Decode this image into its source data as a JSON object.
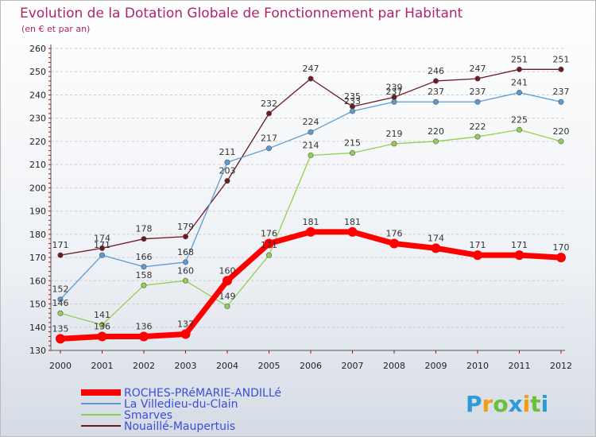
{
  "chart_data": {
    "type": "line",
    "title": "Evolution de la Dotation Globale de Fonctionnement par Habitant",
    "subtitle": "(en € et par an)",
    "xlabel": "",
    "ylabel": "",
    "categories": [
      "2000",
      "2001",
      "2002",
      "2003",
      "2004",
      "2005",
      "2006",
      "2007",
      "2008",
      "2009",
      "2010",
      "2011",
      "2012"
    ],
    "ylim": [
      130,
      260
    ],
    "yticks": [
      130,
      140,
      150,
      160,
      170,
      180,
      190,
      200,
      210,
      220,
      230,
      240,
      250,
      260
    ],
    "grid": "horizontal-dashed",
    "legend_position": "bottom-left",
    "series": [
      {
        "name": "Nouaillé-Maupertuis",
        "color": "#6e1a22",
        "values": [
          171,
          174,
          178,
          179,
          203,
          232,
          247,
          235,
          239,
          246,
          247,
          251,
          251
        ]
      },
      {
        "name": "La Villedieu-du-Clain",
        "color": "#5b9bd5",
        "values": [
          152,
          171,
          166,
          168,
          211,
          217,
          224,
          233,
          237,
          237,
          237,
          241,
          237
        ]
      },
      {
        "name": "Smarves",
        "color": "#92d050",
        "values": [
          146,
          141,
          158,
          160,
          149,
          171,
          214,
          215,
          219,
          220,
          222,
          225,
          220
        ]
      },
      {
        "name": "ROCHES-PRéMARIE-ANDILLé",
        "color": "#ff0000",
        "values": [
          135,
          136,
          136,
          137,
          160,
          176,
          181,
          181,
          176,
          174,
          171,
          171,
          170
        ]
      }
    ],
    "legend_order": [
      "ROCHES-PRéMARIE-ANDILLé",
      "La Villedieu-du-Clain",
      "Smarves",
      "Nouaillé-Maupertuis"
    ]
  },
  "brand": {
    "letters": [
      "P",
      "r",
      "o",
      "x",
      "i",
      "t",
      "i"
    ],
    "colors": [
      "#2e9bd6",
      "#f39c12",
      "#6abf3b",
      "#2e9bd6",
      "#f39c12",
      "#6abf3b",
      "#2e9bd6"
    ]
  },
  "colors": {
    "title": "#b0246a",
    "grid": "#cccccc",
    "legend_text": "#3a4fd8"
  }
}
